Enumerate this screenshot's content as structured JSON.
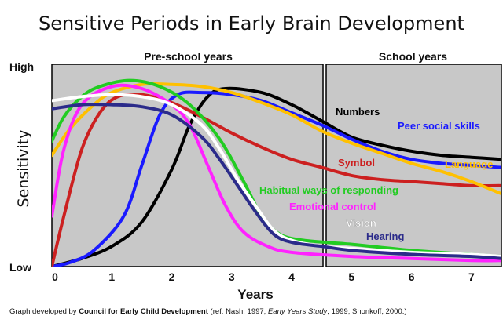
{
  "chart_data": {
    "type": "line",
    "title": "Sensitive Periods in Early Brain Development",
    "xlabel": "Years",
    "ylabel": "Sensitivity",
    "ytick_labels": {
      "high": "High",
      "low": "Low"
    },
    "xlim": [
      0,
      7.5
    ],
    "ylim": [
      0,
      1
    ],
    "x_ticks": [
      0,
      1,
      2,
      3,
      4,
      5,
      6,
      7
    ],
    "regions": [
      {
        "label": "Pre-school years",
        "from": 0,
        "to": 4.55,
        "color": "#c8c8c8"
      },
      {
        "label": "School years",
        "from": 4.55,
        "to": 7.5,
        "color": "#c8c8c8"
      }
    ],
    "grid": false,
    "legend": "direct labels",
    "series": [
      {
        "name": "Numbers",
        "color": "#000000",
        "points": [
          [
            0,
            0
          ],
          [
            0.5,
            0.04
          ],
          [
            1,
            0.1
          ],
          [
            1.5,
            0.22
          ],
          [
            2,
            0.48
          ],
          [
            2.3,
            0.7
          ],
          [
            2.6,
            0.84
          ],
          [
            2.9,
            0.88
          ],
          [
            3.5,
            0.86
          ],
          [
            4,
            0.8
          ],
          [
            4.5,
            0.72
          ],
          [
            5,
            0.64
          ],
          [
            5.5,
            0.6
          ],
          [
            6,
            0.57
          ],
          [
            6.5,
            0.55
          ],
          [
            7,
            0.54
          ],
          [
            7.5,
            0.53
          ]
        ]
      },
      {
        "name": "Peer social skills",
        "color": "#1a1aff",
        "points": [
          [
            0,
            0
          ],
          [
            0.3,
            0.02
          ],
          [
            0.7,
            0.08
          ],
          [
            1.2,
            0.25
          ],
          [
            1.5,
            0.5
          ],
          [
            1.8,
            0.75
          ],
          [
            2.1,
            0.85
          ],
          [
            2.5,
            0.86
          ],
          [
            3,
            0.85
          ],
          [
            3.5,
            0.82
          ],
          [
            4,
            0.76
          ],
          [
            4.5,
            0.7
          ],
          [
            5,
            0.63
          ],
          [
            5.5,
            0.57
          ],
          [
            6,
            0.53
          ],
          [
            6.5,
            0.51
          ],
          [
            7,
            0.5
          ],
          [
            7.5,
            0.49
          ]
        ]
      },
      {
        "name": "Symbol",
        "color": "#cc2020",
        "points": [
          [
            0,
            0
          ],
          [
            0.2,
            0.25
          ],
          [
            0.5,
            0.58
          ],
          [
            0.8,
            0.76
          ],
          [
            1.1,
            0.84
          ],
          [
            1.5,
            0.85
          ],
          [
            2,
            0.81
          ],
          [
            2.5,
            0.74
          ],
          [
            3,
            0.66
          ],
          [
            3.5,
            0.59
          ],
          [
            4,
            0.53
          ],
          [
            4.5,
            0.49
          ],
          [
            5,
            0.45
          ],
          [
            5.5,
            0.43
          ],
          [
            6,
            0.42
          ],
          [
            6.5,
            0.41
          ],
          [
            7,
            0.4
          ],
          [
            7.5,
            0.4
          ]
        ]
      },
      {
        "name": "Language",
        "color": "#ffc000",
        "points": [
          [
            0,
            0.55
          ],
          [
            0.3,
            0.68
          ],
          [
            0.7,
            0.8
          ],
          [
            1,
            0.86
          ],
          [
            1.5,
            0.9
          ],
          [
            2,
            0.9
          ],
          [
            2.5,
            0.89
          ],
          [
            3,
            0.86
          ],
          [
            3.5,
            0.81
          ],
          [
            4,
            0.75
          ],
          [
            4.5,
            0.67
          ],
          [
            5,
            0.61
          ],
          [
            5.5,
            0.56
          ],
          [
            6,
            0.51
          ],
          [
            6.5,
            0.47
          ],
          [
            7,
            0.42
          ],
          [
            7.5,
            0.36
          ]
        ]
      },
      {
        "name": "Habitual ways of responding",
        "color": "#22cc22",
        "points": [
          [
            0,
            0.62
          ],
          [
            0.2,
            0.74
          ],
          [
            0.5,
            0.84
          ],
          [
            0.8,
            0.89
          ],
          [
            1.3,
            0.92
          ],
          [
            1.8,
            0.89
          ],
          [
            2.3,
            0.8
          ],
          [
            2.8,
            0.63
          ],
          [
            3.2,
            0.42
          ],
          [
            3.5,
            0.25
          ],
          [
            3.8,
            0.16
          ],
          [
            4.2,
            0.13
          ],
          [
            5,
            0.11
          ],
          [
            6,
            0.08
          ],
          [
            7,
            0.06
          ],
          [
            7.5,
            0.05
          ]
        ]
      },
      {
        "name": "Emotional control",
        "color": "#ff22ff",
        "points": [
          [
            0,
            0.25
          ],
          [
            0.2,
            0.58
          ],
          [
            0.5,
            0.8
          ],
          [
            1,
            0.89
          ],
          [
            1.5,
            0.88
          ],
          [
            2,
            0.8
          ],
          [
            2.3,
            0.7
          ],
          [
            2.6,
            0.5
          ],
          [
            2.9,
            0.3
          ],
          [
            3.2,
            0.17
          ],
          [
            3.6,
            0.1
          ],
          [
            4,
            0.07
          ],
          [
            5,
            0.05
          ],
          [
            6,
            0.04
          ],
          [
            7,
            0.03
          ],
          [
            7.5,
            0.03
          ]
        ]
      },
      {
        "name": "Vision",
        "color": "#ffffff",
        "points": [
          [
            0,
            0.82
          ],
          [
            0.5,
            0.84
          ],
          [
            1,
            0.85
          ],
          [
            1.5,
            0.84
          ],
          [
            2,
            0.8
          ],
          [
            2.5,
            0.7
          ],
          [
            2.8,
            0.58
          ],
          [
            3.1,
            0.43
          ],
          [
            3.4,
            0.3
          ],
          [
            3.7,
            0.18
          ],
          [
            4,
            0.13
          ],
          [
            4.5,
            0.1
          ],
          [
            5,
            0.09
          ],
          [
            6,
            0.07
          ],
          [
            7,
            0.06
          ],
          [
            7.5,
            0.05
          ]
        ]
      },
      {
        "name": "Hearing",
        "color": "#2b2b8a",
        "points": [
          [
            0,
            0.78
          ],
          [
            0.5,
            0.8
          ],
          [
            1,
            0.8
          ],
          [
            1.5,
            0.79
          ],
          [
            2,
            0.75
          ],
          [
            2.5,
            0.64
          ],
          [
            2.8,
            0.53
          ],
          [
            3.1,
            0.4
          ],
          [
            3.4,
            0.27
          ],
          [
            3.7,
            0.16
          ],
          [
            4,
            0.12
          ],
          [
            4.5,
            0.1
          ],
          [
            5,
            0.08
          ],
          [
            6,
            0.06
          ],
          [
            7,
            0.05
          ],
          [
            7.5,
            0.04
          ]
        ]
      }
    ],
    "series_labels": [
      {
        "series": "Numbers",
        "text": "Numbers",
        "color": "#000000"
      },
      {
        "series": "Peer social skills",
        "text": "Peer social skills",
        "color": "#1a1aff"
      },
      {
        "series": "Symbol",
        "text": "Symbol",
        "color": "#cc2020"
      },
      {
        "series": "Language",
        "text": "Language",
        "color": "#ffc000"
      },
      {
        "series": "Habitual ways of responding",
        "text": "Habitual ways of responding",
        "color": "#22cc22"
      },
      {
        "series": "Emotional control",
        "text": "Emotional control",
        "color": "#ff22ff"
      },
      {
        "series": "Vision",
        "text": "Vision",
        "color": "#ffffff"
      },
      {
        "series": "Hearing",
        "text": "Hearing",
        "color": "#2b2b8a"
      }
    ],
    "caption": {
      "prefix": "Graph developed by ",
      "org": "Council for Early Child Development",
      "mid": " (ref: Nash, 1997; ",
      "italic": "Early Years Study",
      "suffix": ", 1999; Shonkoff, 2000.)"
    }
  }
}
